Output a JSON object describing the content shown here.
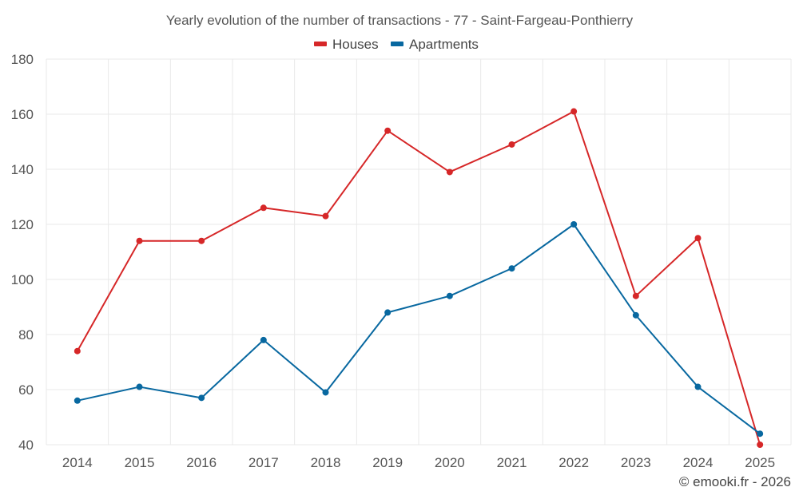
{
  "chart_data": {
    "type": "line",
    "title": "Yearly evolution of the number of transactions - 77 - Saint-Fargeau-Ponthierry",
    "categories": [
      "2014",
      "2015",
      "2016",
      "2017",
      "2018",
      "2019",
      "2020",
      "2021",
      "2022",
      "2023",
      "2024",
      "2025"
    ],
    "series": [
      {
        "name": "Houses",
        "color": "#d62728",
        "values": [
          74,
          114,
          114,
          126,
          123,
          154,
          139,
          149,
          161,
          94,
          115,
          40
        ]
      },
      {
        "name": "Apartments",
        "color": "#0868a0",
        "values": [
          56,
          61,
          57,
          78,
          59,
          88,
          94,
          104,
          120,
          87,
          61,
          44
        ]
      }
    ],
    "ylim": [
      40,
      180
    ],
    "yticks": [
      40,
      60,
      80,
      100,
      120,
      140,
      160,
      180
    ],
    "grid": true,
    "legend": "top-center",
    "xlabel": "",
    "ylabel": ""
  },
  "credit": "© emooki.fr - 2026"
}
